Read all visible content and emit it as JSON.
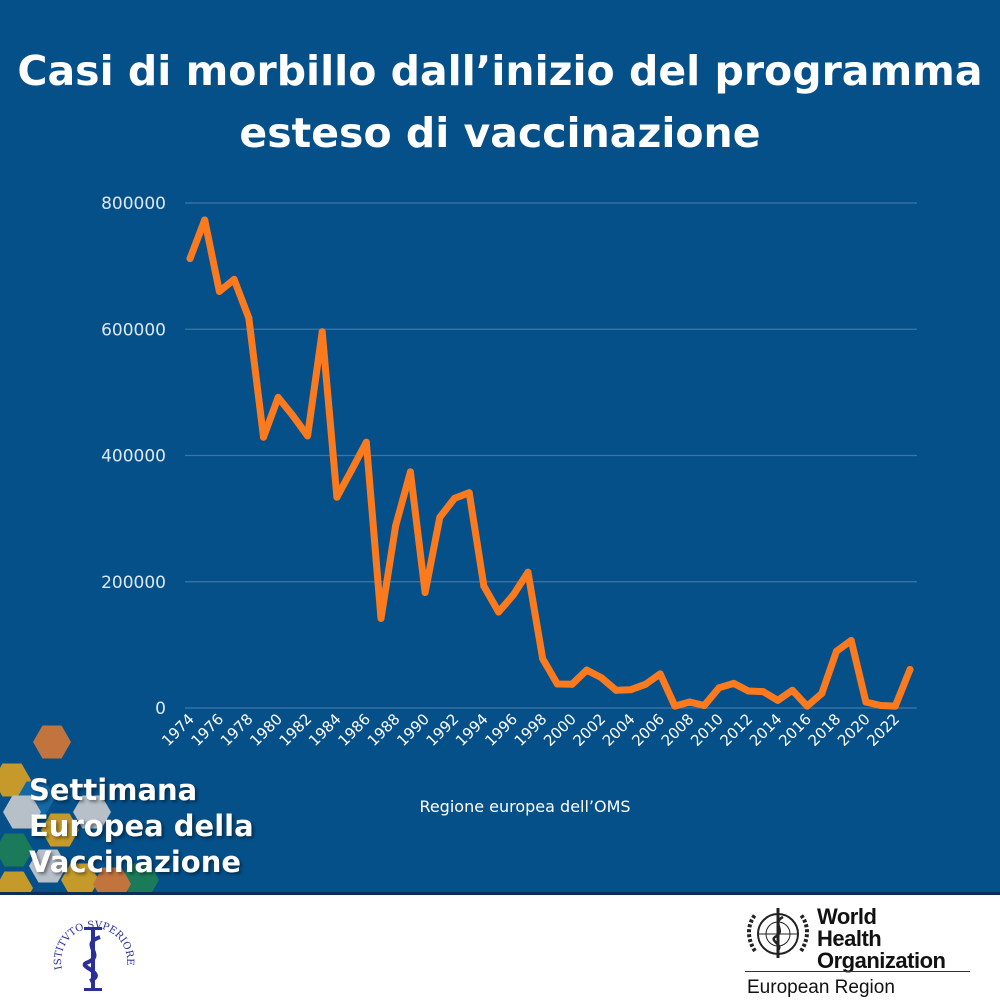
{
  "title_line1": "Casi di morbillo dall’inizio del programma",
  "title_line2": "esteso di vaccinazione",
  "campaign": {
    "line1": "Settimana",
    "line2": "Europea della",
    "line3": "Vaccinazione"
  },
  "footer": {
    "iss_logo_text": "ISTITVTO SVPERIORE DI SANITÀ",
    "who_name_line1": "World Health",
    "who_name_line2": "Organization",
    "who_region": "European Region"
  },
  "colors": {
    "background": "#06508a",
    "line": "#fc7a1e",
    "grid": "#3c76a8"
  },
  "chart_data": {
    "type": "line",
    "title": "Casi di morbillo dall’inizio del programma esteso di vaccinazione",
    "xlabel": "Regione europea dell’OMS",
    "ylabel": "",
    "ylim": [
      0,
      800000
    ],
    "yticks": [
      "0",
      "200000",
      "400000",
      "600000",
      "800000"
    ],
    "ytick_values": [
      0,
      200000,
      400000,
      600000,
      800000
    ],
    "xtick_labels": [
      "1974",
      "1976",
      "1978",
      "1980",
      "1982",
      "1984",
      "1986",
      "1988",
      "1990",
      "1992",
      "1994",
      "1996",
      "1998",
      "2000",
      "2002",
      "2004",
      "2006",
      "2008",
      "2010",
      "2012",
      "2014",
      "2016",
      "2018",
      "2020",
      "2022"
    ],
    "grid": true,
    "legend": "none",
    "series": [
      {
        "name": "Casi di morbillo",
        "x": [
          1974,
          1975,
          1976,
          1977,
          1978,
          1979,
          1980,
          1981,
          1982,
          1983,
          1984,
          1985,
          1986,
          1987,
          1988,
          1989,
          1990,
          1991,
          1992,
          1993,
          1994,
          1995,
          1996,
          1997,
          1998,
          1999,
          2000,
          2001,
          2002,
          2003,
          2004,
          2005,
          2006,
          2007,
          2008,
          2009,
          2010,
          2011,
          2012,
          2013,
          2014,
          2015,
          2016,
          2017,
          2018,
          2019,
          2020,
          2021,
          2022,
          2023
        ],
        "values": [
          712000,
          773000,
          660000,
          679000,
          618000,
          429000,
          492000,
          463000,
          431000,
          596000,
          334000,
          377000,
          421000,
          142000,
          289000,
          374000,
          183000,
          302000,
          332000,
          341000,
          193000,
          152000,
          179000,
          215000,
          78000,
          38000,
          37500,
          60000,
          48000,
          28000,
          29000,
          37500,
          54000,
          3000,
          9500,
          4000,
          32000,
          39000,
          27000,
          26000,
          12000,
          28000,
          3000,
          23000,
          90000,
          107000,
          9500,
          4000,
          3000,
          61000
        ]
      }
    ]
  }
}
